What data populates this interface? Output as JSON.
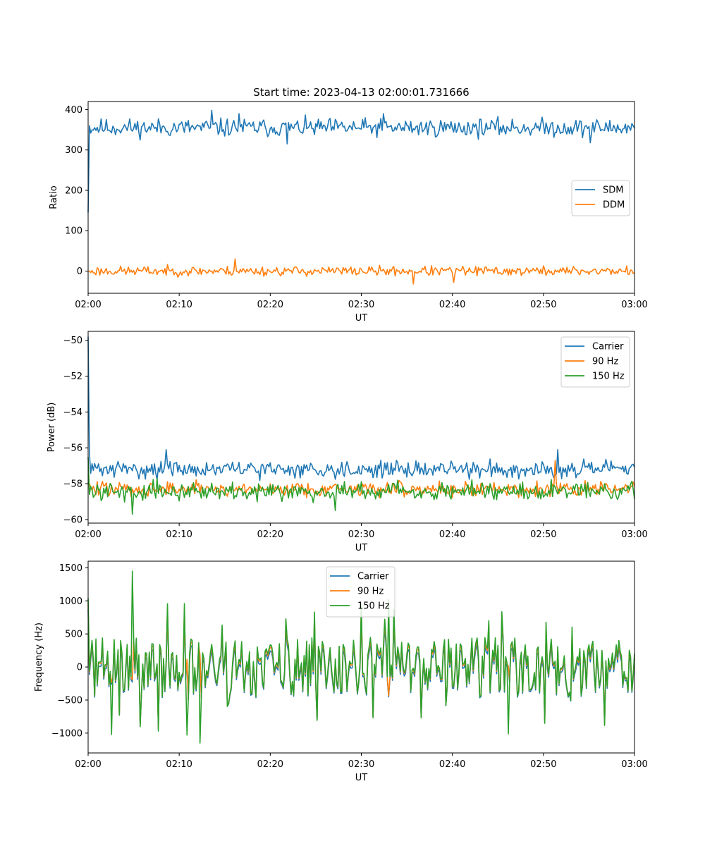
{
  "colors": {
    "blue": "#1f77b4",
    "orange": "#ff7f0e",
    "green": "#2ca02c"
  },
  "chart_data": [
    {
      "type": "line",
      "title": "Start time: 2023-04-13 02:00:01.731666",
      "xlabel": "UT",
      "ylabel": "Ratio",
      "xlim": [
        "02:00",
        "03:00"
      ],
      "ylim": [
        -55,
        420
      ],
      "xticks": [
        "02:00",
        "02:10",
        "02:20",
        "02:30",
        "02:40",
        "02:50",
        "03:00"
      ],
      "yticks": [
        0,
        100,
        200,
        300,
        400
      ],
      "yticklabels": [
        "0",
        "100",
        "200",
        "300",
        "400"
      ],
      "legend": "center-right",
      "series": [
        {
          "name": "SDM",
          "color": "#1f77b4",
          "mode": "noise",
          "mean": 355,
          "amp": 17,
          "min": 315,
          "max": 398,
          "start": [
            145,
            360
          ],
          "seed": 11,
          "spikes": [
            [
              13.5,
              398
            ],
            [
              16.5,
              390
            ],
            [
              21.9,
              315
            ],
            [
              32.5,
              390
            ],
            [
              55.2,
              318
            ]
          ]
        },
        {
          "name": "DDM",
          "color": "#ff7f0e",
          "mode": "noise",
          "mean": 0,
          "amp": 9,
          "min": -32,
          "max": 32,
          "start": [
            0,
            0
          ],
          "seed": 23,
          "spikes": [
            [
              16.2,
              30
            ],
            [
              35.7,
              -32
            ],
            [
              40.1,
              -28
            ]
          ]
        }
      ]
    },
    {
      "type": "line",
      "title": "",
      "xlabel": "UT",
      "ylabel": "Power (dB)",
      "xlim": [
        "02:00",
        "03:00"
      ],
      "ylim": [
        -60.2,
        -49.5
      ],
      "xticks": [
        "02:00",
        "02:10",
        "02:20",
        "02:30",
        "02:40",
        "02:50",
        "03:00"
      ],
      "yticks": [
        -60,
        -58,
        -56,
        -54,
        -52,
        -50
      ],
      "yticklabels": [
        "−60",
        "−58",
        "−56",
        "−54",
        "−52",
        "−50"
      ],
      "legend": "upper-right",
      "series": [
        {
          "name": "Carrier",
          "color": "#1f77b4",
          "mode": "noise",
          "mean": -57.2,
          "amp": 0.35,
          "min": -58.0,
          "max": -56.1,
          "start": [
            -49.8,
            -56.3
          ],
          "seed": 31,
          "spikes": [
            [
              8.5,
              -56.1
            ],
            [
              51.5,
              -56.1
            ]
          ]
        },
        {
          "name": "90 Hz",
          "color": "#ff7f0e",
          "mode": "noise",
          "mean": -58.3,
          "amp": 0.32,
          "min": -59.4,
          "max": -56.7,
          "start": [
            -58.0,
            -58.0
          ],
          "seed": 47,
          "spikes": [
            [
              51.3,
              -56.7
            ]
          ]
        },
        {
          "name": "150 Hz",
          "color": "#2ca02c",
          "mode": "noise",
          "mean": -58.4,
          "amp": 0.38,
          "min": -59.7,
          "max": -57.3,
          "start": [
            -56.5,
            -58.6
          ],
          "seed": 59,
          "spikes": [
            [
              4.8,
              -59.7
            ],
            [
              27.2,
              -59.5
            ]
          ]
        }
      ]
    },
    {
      "type": "line",
      "title": "",
      "xlabel": "UT",
      "ylabel": "Frequency (Hz)",
      "xlim": [
        "02:00",
        "03:00"
      ],
      "ylim": [
        -1300,
        1600
      ],
      "xticks": [
        "02:00",
        "02:10",
        "02:20",
        "02:30",
        "02:40",
        "02:50",
        "03:00"
      ],
      "yticks": [
        -1000,
        -500,
        0,
        500,
        1000,
        1500
      ],
      "yticklabels": [
        "−1000",
        "−500",
        "0",
        "500",
        "1000",
        "1500"
      ],
      "legend": "upper-center",
      "series": [
        {
          "name": "Carrier",
          "color": "#1f77b4",
          "mode": "freq",
          "offset": -60,
          "scale": 0.9,
          "seed": 71
        },
        {
          "name": "90 Hz",
          "color": "#ff7f0e",
          "mode": "freq",
          "offset": -20,
          "scale": 0.95,
          "seed": 71
        },
        {
          "name": "150 Hz",
          "color": "#2ca02c",
          "mode": "freq",
          "offset": 0,
          "scale": 1.0,
          "seed": 71,
          "spikes": [
            [
              4.9,
              1450
            ],
            [
              12.3,
              -1150
            ],
            [
              10.9,
              -1030
            ],
            [
              2.6,
              -1020
            ],
            [
              46.1,
              -1010
            ],
            [
              33.0,
              1020
            ]
          ]
        }
      ]
    }
  ]
}
